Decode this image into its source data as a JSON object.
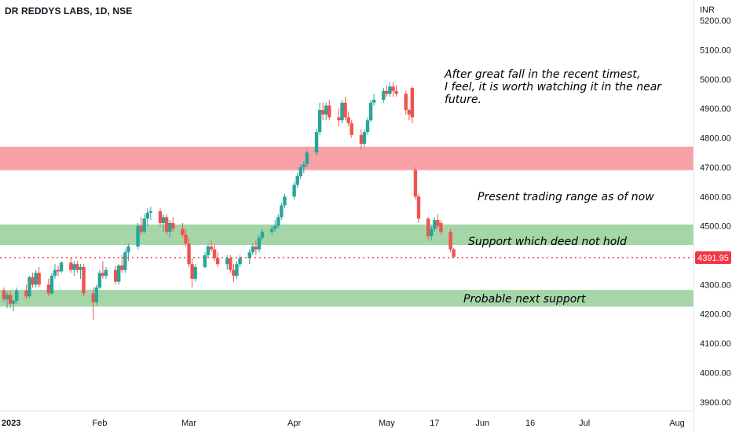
{
  "chart_data": {
    "type": "candlestick",
    "title": "DR REDDYS LABS, 1D, NSE",
    "currency": "INR",
    "current_price": "4391.95",
    "ylim": [
      3870,
      5270
    ],
    "y_ticks": [
      "5200.00",
      "5100.00",
      "5000.00",
      "4900.00",
      "4800.00",
      "4700.00",
      "4600.00",
      "4500.00",
      "4400.00",
      "4300.00",
      "4200.00",
      "4100.00",
      "4000.00",
      "3900.00"
    ],
    "x_ticks": [
      {
        "label": "2023",
        "bold": true,
        "date": "2023-01-02"
      },
      {
        "label": "Feb",
        "date": "2023-02-01"
      },
      {
        "label": "Mar",
        "date": "2023-03-01"
      },
      {
        "label": "Apr",
        "date": "2023-04-03"
      },
      {
        "label": "May",
        "date": "2023-05-02"
      },
      {
        "label": "17",
        "date": "2023-05-17"
      },
      {
        "label": "Jun",
        "date": "2023-06-01"
      },
      {
        "label": "16",
        "date": "2023-06-16"
      },
      {
        "label": "Jul",
        "date": "2023-07-03"
      },
      {
        "label": "Aug",
        "date": "2023-08-01"
      }
    ],
    "zones": [
      {
        "name": "resistance",
        "low": 4690,
        "high": 4770,
        "color": "#f8a1a6"
      },
      {
        "name": "support",
        "low": 4435,
        "high": 4505,
        "color": "#a5d6a7"
      },
      {
        "name": "next-support",
        "low": 4225,
        "high": 4282,
        "color": "#a5d6a7"
      }
    ],
    "annotations": {
      "note_lines": [
        "After great fall in the recent timest,",
        "I feel, it is worth watching it in the near",
        "future."
      ],
      "range_label": "Present trading range as of now",
      "support_label": "Support which deed not hold",
      "next_support_label": "Probable next support"
    },
    "candles": [
      [
        4280,
        4290,
        4240,
        4250
      ],
      [
        4250,
        4275,
        4220,
        4265
      ],
      [
        4265,
        4280,
        4220,
        4235
      ],
      [
        4235,
        4250,
        4210,
        4245
      ],
      [
        4245,
        4290,
        4235,
        4280
      ],
      [
        4280,
        4300,
        4250,
        4260
      ],
      [
        4260,
        4330,
        4255,
        4325
      ],
      [
        4325,
        4340,
        4290,
        4300
      ],
      [
        4300,
        4350,
        4290,
        4340
      ],
      [
        4340,
        4360,
        4290,
        4300
      ],
      [
        4300,
        4320,
        4260,
        4270
      ],
      [
        4270,
        4340,
        4265,
        4330
      ],
      [
        4330,
        4370,
        4320,
        4350
      ],
      [
        4350,
        4365,
        4330,
        4345
      ],
      [
        4345,
        4380,
        4340,
        4375
      ],
      [
        4375,
        4390,
        4340,
        4350
      ],
      [
        4350,
        4380,
        4330,
        4370
      ],
      [
        4370,
        4380,
        4340,
        4350
      ],
      [
        4350,
        4370,
        4320,
        4360
      ],
      [
        4360,
        4370,
        4260,
        4270
      ],
      [
        4270,
        4290,
        4180,
        4240
      ],
      [
        4240,
        4300,
        4230,
        4290
      ],
      [
        4290,
        4350,
        4285,
        4340
      ],
      [
        4340,
        4380,
        4320,
        4330
      ],
      [
        4330,
        4360,
        4320,
        4350
      ],
      [
        4350,
        4365,
        4300,
        4310
      ],
      [
        4310,
        4370,
        4300,
        4365
      ],
      [
        4365,
        4400,
        4340,
        4350
      ],
      [
        4350,
        4420,
        4340,
        4410
      ],
      [
        4410,
        4440,
        4380,
        4430
      ],
      [
        4430,
        4510,
        4420,
        4500
      ],
      [
        4500,
        4530,
        4470,
        4480
      ],
      [
        4480,
        4540,
        4475,
        4525
      ],
      [
        4525,
        4560,
        4500,
        4545
      ],
      [
        4545,
        4565,
        4520,
        4550
      ],
      [
        4550,
        4560,
        4500,
        4510
      ],
      [
        4510,
        4540,
        4480,
        4530
      ],
      [
        4530,
        4540,
        4470,
        4480
      ],
      [
        4480,
        4520,
        4460,
        4510
      ],
      [
        4510,
        4530,
        4480,
        4490
      ],
      [
        4490,
        4510,
        4460,
        4470
      ],
      [
        4470,
        4490,
        4430,
        4440
      ],
      [
        4440,
        4460,
        4360,
        4370
      ],
      [
        4370,
        4390,
        4290,
        4320
      ],
      [
        4320,
        4370,
        4310,
        4360
      ],
      [
        4360,
        4410,
        4355,
        4400
      ],
      [
        4400,
        4440,
        4390,
        4430
      ],
      [
        4430,
        4450,
        4410,
        4420
      ],
      [
        4420,
        4440,
        4380,
        4390
      ],
      [
        4390,
        4410,
        4360,
        4370
      ],
      [
        4370,
        4400,
        4350,
        4390
      ],
      [
        4390,
        4400,
        4340,
        4350
      ],
      [
        4350,
        4370,
        4310,
        4330
      ],
      [
        4330,
        4380,
        4320,
        4370
      ],
      [
        4370,
        4400,
        4360,
        4390
      ],
      [
        4390,
        4420,
        4370,
        4410
      ],
      [
        4410,
        4440,
        4400,
        4430
      ],
      [
        4430,
        4450,
        4400,
        4420
      ],
      [
        4420,
        4470,
        4410,
        4460
      ],
      [
        4460,
        4490,
        4450,
        4480
      ],
      [
        4480,
        4500,
        4470,
        4490
      ],
      [
        4490,
        4520,
        4480,
        4500
      ],
      [
        4500,
        4540,
        4490,
        4530
      ],
      [
        4530,
        4580,
        4520,
        4570
      ],
      [
        4570,
        4610,
        4560,
        4600
      ],
      [
        4600,
        4650,
        4590,
        4640
      ],
      [
        4640,
        4680,
        4630,
        4670
      ],
      [
        4670,
        4710,
        4660,
        4700
      ],
      [
        4700,
        4720,
        4680,
        4710
      ],
      [
        4710,
        4760,
        4700,
        4750
      ],
      [
        4750,
        4830,
        4740,
        4820
      ],
      [
        4820,
        4920,
        4810,
        4895
      ],
      [
        4895,
        4920,
        4860,
        4880
      ],
      [
        4880,
        4920,
        4860,
        4910
      ],
      [
        4910,
        4930,
        4860,
        4870
      ],
      [
        4870,
        4900,
        4840,
        4860
      ],
      [
        4860,
        4930,
        4850,
        4920
      ],
      [
        4920,
        4940,
        4860,
        4870
      ],
      [
        4870,
        4890,
        4840,
        4850
      ],
      [
        4850,
        4860,
        4800,
        4810
      ],
      [
        4810,
        4830,
        4760,
        4780
      ],
      [
        4780,
        4830,
        4770,
        4820
      ],
      [
        4820,
        4870,
        4810,
        4860
      ],
      [
        4860,
        4930,
        4855,
        4920
      ],
      [
        4920,
        4950,
        4910,
        4930
      ],
      [
        4930,
        4970,
        4920,
        4960
      ],
      [
        4960,
        4980,
        4940,
        4950
      ],
      [
        4950,
        4990,
        4940,
        4975
      ],
      [
        4975,
        4990,
        4940,
        4960
      ],
      [
        4960,
        4980,
        4940,
        4950
      ],
      [
        4950,
        4960,
        4880,
        4895
      ],
      [
        4895,
        4900,
        4860,
        4880
      ],
      [
        4970,
        4975,
        4850,
        4870
      ],
      [
        4690,
        4700,
        4590,
        4600
      ],
      [
        4600,
        4610,
        4510,
        4525
      ],
      [
        4525,
        4530,
        4450,
        4465
      ],
      [
        4465,
        4500,
        4450,
        4490
      ],
      [
        4490,
        4530,
        4480,
        4520
      ],
      [
        4520,
        4540,
        4490,
        4500
      ],
      [
        4510,
        4520,
        4470,
        4480
      ],
      [
        4480,
        4490,
        4410,
        4420
      ],
      [
        4420,
        4425,
        4390,
        4395
      ]
    ]
  }
}
